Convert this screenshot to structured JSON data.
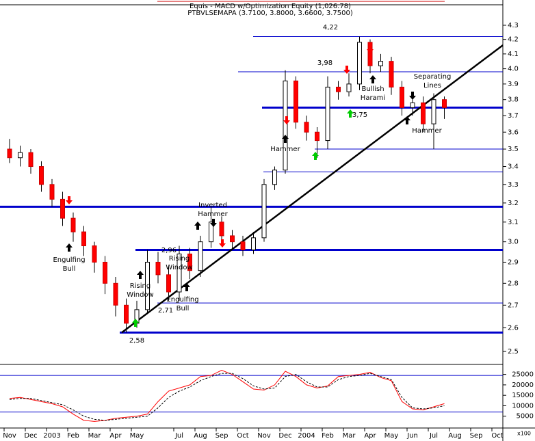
{
  "chart_data": {
    "type": "candlestick",
    "title": "Equis - MACD  w/Optimization Equity (1,026.78)",
    "subtitle": "PTBVLSEMAPA (3.7100, 3.8000, 3.6600, 3.7500)",
    "log_scale": true,
    "up_color": "#ffffff",
    "down_color": "#ff0000",
    "categories": [
      "Nov",
      null,
      "Dec",
      null,
      "2003",
      null,
      "Feb",
      null,
      "Mar",
      null,
      "Apr",
      null,
      "May",
      null,
      null,
      null,
      "Jul",
      null,
      "Aug",
      null,
      "Sep",
      null,
      "Oct",
      null,
      "Nov",
      null,
      "Dec",
      null,
      "2004",
      null,
      "Feb",
      null,
      "Mar",
      null,
      "Apr",
      null,
      "May",
      null,
      "Jun",
      null,
      "Jul",
      null,
      "Aug",
      null,
      "Sep",
      null,
      "Oct",
      null
    ],
    "open": [
      3.5,
      3.45,
      3.48,
      3.4,
      3.3,
      3.22,
      3.12,
      3.05,
      2.98,
      2.9,
      2.8,
      2.7,
      2.62,
      2.68,
      2.9,
      2.84,
      2.76,
      2.94,
      2.86,
      3.0,
      3.1,
      3.03,
      3.0,
      2.96,
      3.02,
      3.3,
      3.38,
      3.92,
      3.66,
      3.6,
      3.55,
      3.88,
      3.85,
      3.9,
      4.18,
      4.02,
      4.05,
      3.88,
      3.75,
      3.78,
      3.65,
      3.8,
      null,
      null,
      null,
      null,
      null,
      null
    ],
    "high": [
      3.56,
      3.52,
      3.5,
      3.43,
      3.33,
      3.26,
      3.15,
      3.08,
      3.0,
      2.93,
      2.83,
      2.73,
      2.72,
      2.96,
      2.95,
      2.88,
      2.98,
      2.97,
      3.03,
      3.18,
      3.13,
      3.06,
      3.03,
      3.05,
      3.33,
      3.4,
      3.99,
      3.95,
      3.7,
      3.63,
      3.95,
      3.92,
      3.97,
      4.22,
      4.2,
      4.1,
      4.08,
      3.92,
      3.83,
      3.82,
      3.84,
      3.82,
      null,
      null,
      null,
      null,
      null,
      null
    ],
    "low": [
      3.42,
      3.4,
      3.36,
      3.26,
      3.18,
      3.08,
      3.0,
      2.93,
      2.85,
      2.75,
      2.65,
      2.58,
      2.6,
      2.66,
      2.8,
      2.72,
      2.72,
      2.82,
      2.83,
      2.97,
      2.99,
      2.96,
      2.93,
      2.94,
      3.0,
      3.27,
      3.36,
      3.62,
      3.55,
      3.45,
      3.5,
      3.8,
      3.82,
      3.86,
      3.97,
      3.98,
      3.83,
      3.7,
      3.7,
      3.6,
      3.5,
      3.68,
      null,
      null,
      null,
      null,
      null,
      null
    ],
    "close": [
      3.45,
      3.48,
      3.4,
      3.3,
      3.22,
      3.12,
      3.05,
      2.98,
      2.9,
      2.8,
      2.7,
      2.62,
      2.68,
      2.9,
      2.84,
      2.76,
      2.94,
      2.86,
      3.0,
      3.1,
      3.03,
      3.0,
      2.96,
      3.02,
      3.3,
      3.38,
      3.92,
      3.66,
      3.6,
      3.55,
      3.88,
      3.85,
      3.9,
      4.18,
      4.02,
      4.05,
      3.88,
      3.75,
      3.78,
      3.65,
      3.8,
      3.75,
      null,
      null,
      null,
      null,
      null,
      null
    ],
    "ylim": [
      2.45,
      4.45
    ],
    "yticks": [
      2.5,
      2.6,
      2.7,
      2.8,
      2.9,
      {
        "value": 3,
        "label": "3.0"
      },
      3.1,
      3.2,
      3.3,
      3.4,
      3.5,
      3.6,
      3.7,
      3.8,
      3.9,
      {
        "value": 4,
        "label": "4.0"
      },
      4.1,
      4.2,
      4.3
    ],
    "level_color": "#0000cc",
    "levels": [
      {
        "value": 4.22,
        "label": "4,22",
        "thick": false
      },
      {
        "value": 3.98,
        "label": "3,98",
        "thick": false
      },
      {
        "value": 3.75,
        "label": "3,75",
        "thick": true
      },
      {
        "value": 3.5,
        "thick": false
      },
      {
        "value": 3.37,
        "thick": false
      },
      {
        "value": 3.18,
        "thick": true
      },
      {
        "value": 2.96,
        "label": "2,96",
        "thick": true
      },
      {
        "value": 2.71,
        "label": "2,71",
        "thick": false
      },
      {
        "value": 2.58,
        "label": "2,58",
        "thick": true
      }
    ],
    "trendline": {
      "start": 2.58,
      "end": 4.16,
      "color": "#000000"
    },
    "annotations": [
      {
        "text": [
          "Engulfing",
          "Bull"
        ]
      },
      {
        "text": [
          "Rising",
          "Window"
        ]
      },
      {
        "text": [
          "Engulfing",
          "Bull"
        ]
      },
      {
        "text": [
          "Rising",
          "Window"
        ]
      },
      {
        "text": [
          "Inverted",
          "Hammer"
        ]
      },
      {
        "text": [
          "Hammer"
        ]
      },
      {
        "text": [
          "Bullish",
          "Harami"
        ]
      },
      {
        "text": [
          "Separating",
          "Lines"
        ]
      },
      {
        "text": [
          "Hammer"
        ]
      }
    ],
    "indicator": {
      "type": "line",
      "ylim": [
        0,
        27500
      ],
      "yticks": [
        5000,
        10000,
        15000,
        20000,
        25000
      ],
      "unit_label": "x100",
      "levels": [
        24500,
        7000
      ],
      "series": [
        {
          "color": "#ff0000",
          "dashed": false,
          "values": [
            13500,
            14000,
            13000,
            12000,
            11000,
            9500,
            6000,
            3000,
            2500,
            3000,
            4000,
            4500,
            5000,
            6000,
            12000,
            17000,
            18500,
            20000,
            24000,
            24500,
            27000,
            25000,
            21500,
            18000,
            17500,
            20000,
            26500,
            24000,
            20000,
            18500,
            19500,
            24000,
            24500,
            25000,
            26000,
            23500,
            22000,
            12000,
            8500,
            8000,
            9500,
            11000,
            null,
            null,
            null,
            null,
            null,
            null
          ]
        },
        {
          "color": "#000000",
          "dashed": true,
          "values": [
            13000,
            13500,
            13500,
            12500,
            11500,
            10500,
            8000,
            5000,
            3500,
            3000,
            3500,
            4000,
            4500,
            5000,
            9000,
            14000,
            17000,
            19000,
            22000,
            24000,
            25500,
            25500,
            23000,
            19500,
            18000,
            18500,
            24000,
            25000,
            21500,
            19000,
            19000,
            22500,
            24000,
            24500,
            25500,
            24000,
            22500,
            14000,
            9000,
            8500,
            9000,
            10000,
            null,
            null,
            null,
            null,
            null,
            null
          ]
        }
      ]
    }
  }
}
